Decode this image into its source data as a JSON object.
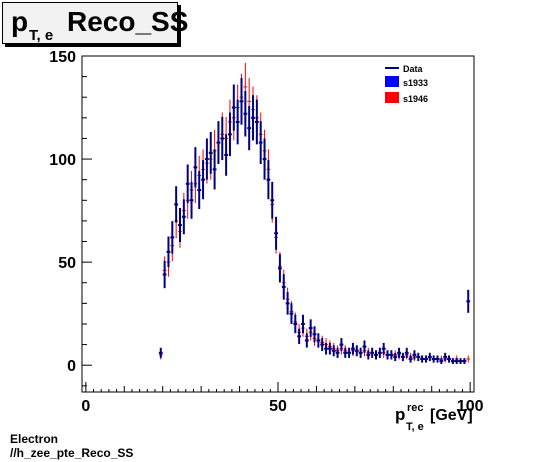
{
  "title": {
    "main": "p",
    "sub": "T, e",
    "rest": "Reco_SS"
  },
  "footer": {
    "line1": "Electron",
    "line2": "//h_zee_pte_Reco_SS"
  },
  "chart_data": {
    "type": "scatter",
    "xlim": [
      -1,
      101
    ],
    "ylim": [
      -13,
      150
    ],
    "xticks": [
      "0",
      "50",
      "100"
    ],
    "yticks": [
      "0",
      "50",
      "100",
      "150"
    ],
    "xlabel": {
      "main": "p",
      "sup": "rec",
      "sub": "T, e",
      "unit": "[GeV]"
    },
    "legend": {
      "position": "top-right",
      "entries": [
        "Data",
        "s1933",
        "s1946"
      ]
    },
    "colors": {
      "Data": "#000080",
      "s1933": "#0000ff",
      "s1946": "#ff0000"
    },
    "x": [
      19.5,
      20.5,
      21.5,
      22.5,
      23.5,
      24.5,
      25.5,
      26.5,
      27.5,
      28.5,
      29.5,
      30.5,
      31.5,
      32.5,
      33.5,
      34.5,
      35.5,
      36.5,
      37.5,
      38.5,
      39.5,
      40.5,
      41.5,
      42.5,
      43.5,
      44.5,
      45.5,
      46.5,
      47.5,
      48.5,
      49.5,
      50.5,
      51.5,
      52.5,
      53.5,
      54.5,
      55.5,
      56.5,
      57.5,
      58.5,
      59.5,
      60.5,
      61.5,
      62.5,
      63.5,
      64.5,
      65.5,
      66.5,
      67.5,
      68.5,
      69.5,
      70.5,
      71.5,
      72.5,
      73.5,
      74.5,
      75.5,
      76.5,
      77.5,
      78.5,
      79.5,
      80.5,
      81.5,
      82.5,
      83.5,
      84.5,
      85.5,
      86.5,
      87.5,
      88.5,
      89.5,
      90.5,
      91.5,
      92.5,
      93.5,
      94.5,
      95.5,
      96.5,
      97.5,
      98.5,
      99.5
    ],
    "series": [
      {
        "name": "Data",
        "values": [
          6,
          44,
          55,
          62,
          78,
          68,
          72,
          88,
          80,
          96,
          85,
          90,
          100,
          103,
          95,
          108,
          110,
          102,
          112,
          125,
          118,
          128,
          122,
          115,
          120,
          118,
          108,
          100,
          90,
          80,
          64,
          47,
          38,
          30,
          25,
          20,
          14,
          20,
          12,
          18,
          15,
          12,
          10,
          8,
          8,
          7,
          6,
          10,
          6,
          6,
          8,
          7,
          6,
          9,
          5,
          6,
          5,
          6,
          8,
          5,
          5,
          4,
          6,
          4,
          6,
          3,
          5,
          4,
          3,
          3,
          4,
          3,
          3,
          2,
          4,
          3,
          2,
          2,
          2,
          2,
          31
        ]
      },
      {
        "name": "s1946",
        "values": [
          5,
          46,
          50,
          58,
          70,
          65,
          75,
          80,
          85,
          88,
          92,
          95,
          98,
          100,
          104,
          108,
          112,
          110,
          118,
          120,
          125,
          130,
          135,
          128,
          124,
          120,
          112,
          104,
          95,
          78,
          62,
          48,
          40,
          32,
          26,
          21,
          16,
          18,
          14,
          16,
          13,
          12,
          11,
          10,
          9,
          8,
          7,
          8,
          7,
          6,
          7,
          7,
          6,
          7,
          6,
          6,
          5,
          6,
          6,
          5,
          5,
          5,
          5,
          4,
          5,
          4,
          4,
          4,
          3,
          3,
          4,
          3,
          3,
          3,
          3,
          3,
          2,
          3,
          2,
          2,
          3
        ]
      }
    ]
  }
}
